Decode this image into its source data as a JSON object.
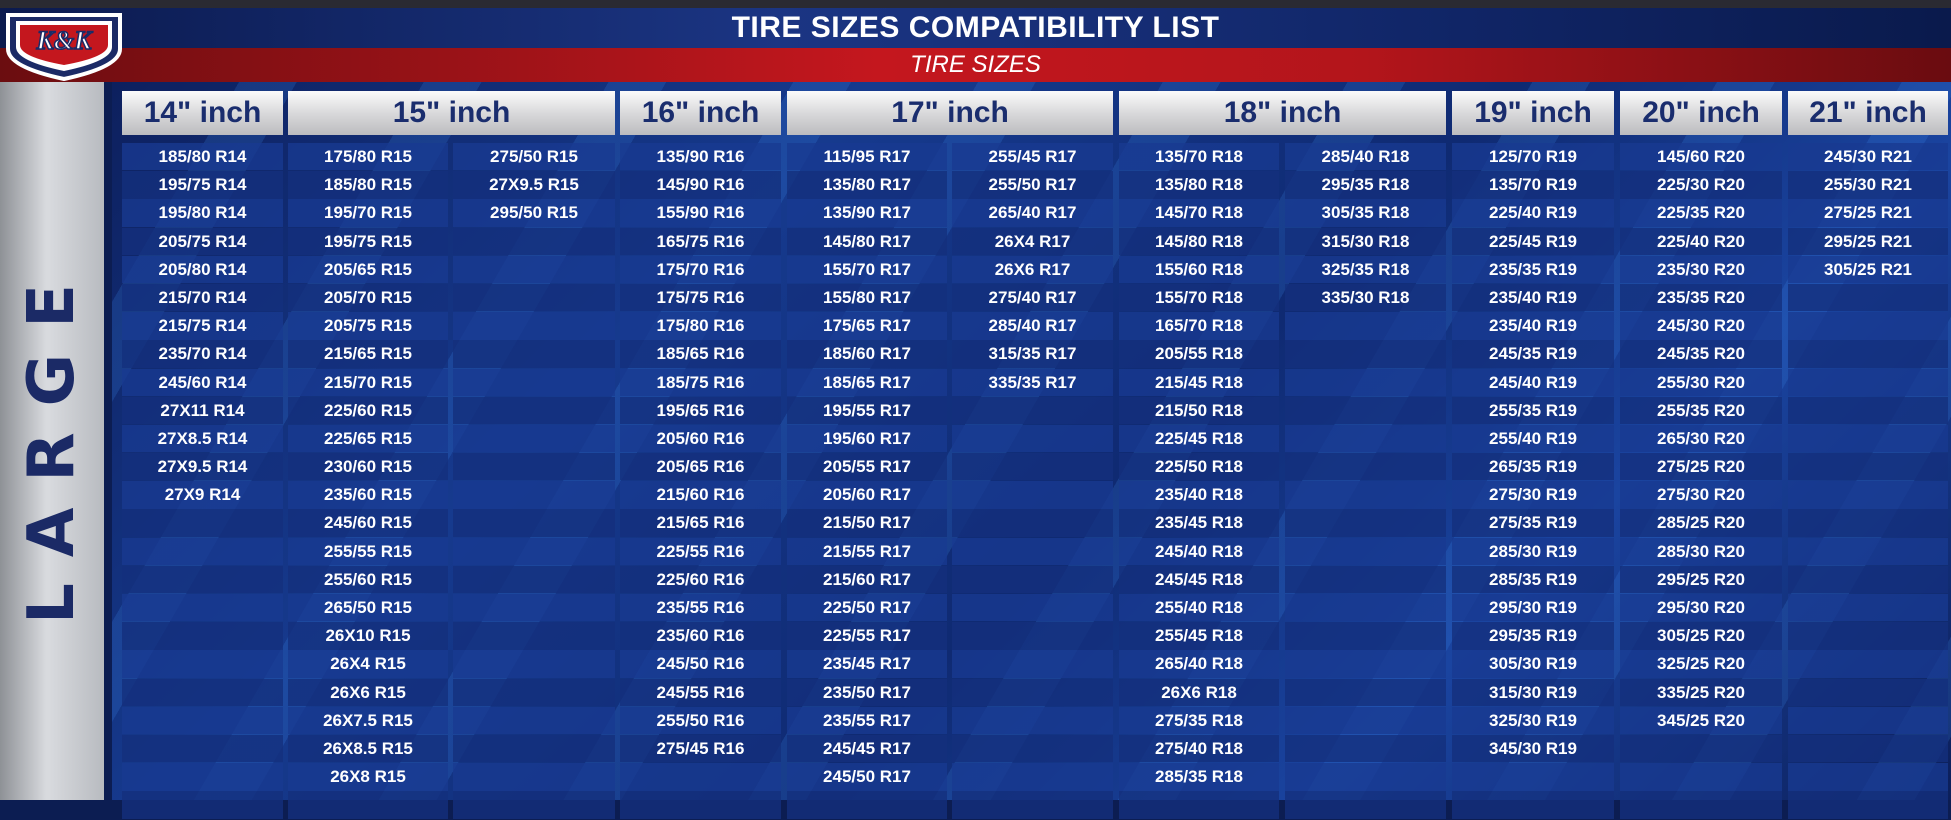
{
  "logo": {
    "text": "K&K"
  },
  "title": "TIRE SIZES COMPATIBILITY LIST",
  "subtitle": "TIRE SIZES",
  "side_label": "LARGE",
  "headers": [
    "14\" inch",
    "15\" inch",
    "16\" inch",
    "17\" inch",
    "18\" inch",
    "19\" inch",
    "20\" inch",
    "21\" inch"
  ],
  "columns": [
    [
      "185/80 R14",
      "195/75 R14",
      "195/80 R14",
      "205/75 R14",
      "205/80 R14",
      "215/70 R14",
      "215/75 R14",
      "235/70 R14",
      "245/60 R14",
      "27X11 R14",
      "27X8.5 R14",
      "27X9.5 R14",
      "27X9 R14",
      "",
      "",
      "",
      "",
      "",
      "",
      "",
      "",
      "",
      "",
      ""
    ],
    [
      "175/80 R15",
      "185/80 R15",
      "195/70 R15",
      "195/75 R15",
      "205/65 R15",
      "205/70 R15",
      "205/75 R15",
      "215/65 R15",
      "215/70 R15",
      "225/60 R15",
      "225/65 R15",
      "230/60 R15",
      "235/60 R15",
      "245/60 R15",
      "255/55 R15",
      "255/60 R15",
      "265/50 R15",
      "26X10 R15",
      "26X4 R15",
      "26X6 R15",
      "26X7.5 R15",
      "26X8.5 R15",
      "26X8 R15",
      ""
    ],
    [
      "275/50 R15",
      "27X9.5 R15",
      "295/50 R15",
      "",
      "",
      "",
      "",
      "",
      "",
      "",
      "",
      "",
      "",
      "",
      "",
      "",
      "",
      "",
      "",
      "",
      "",
      "",
      "",
      ""
    ],
    [
      "135/90 R16",
      "145/90 R16",
      "155/90 R16",
      "165/75 R16",
      "175/70 R16",
      "175/75 R16",
      "175/80 R16",
      "185/65 R16",
      "185/75 R16",
      "195/65 R16",
      "205/60 R16",
      "205/65 R16",
      "215/60 R16",
      "215/65 R16",
      "225/55 R16",
      "225/60 R16",
      "235/55 R16",
      "235/60 R16",
      "245/50 R16",
      "245/55 R16",
      "255/50 R16",
      "275/45 R16",
      "",
      ""
    ],
    [
      "115/95 R17",
      "135/80 R17",
      "135/90 R17",
      "145/80 R17",
      "155/70 R17",
      "155/80 R17",
      "175/65 R17",
      "185/60 R17",
      "185/65 R17",
      "195/55 R17",
      "195/60 R17",
      "205/55 R17",
      "205/60 R17",
      "215/50 R17",
      "215/55 R17",
      "215/60 R17",
      "225/50 R17",
      "225/55 R17",
      "235/45 R17",
      "235/50 R17",
      "235/55 R17",
      "245/45 R17",
      "245/50 R17",
      ""
    ],
    [
      "255/45 R17",
      "255/50 R17",
      "265/40 R17",
      "26X4 R17",
      "26X6 R17",
      "275/40 R17",
      "285/40 R17",
      "315/35 R17",
      "335/35 R17",
      "",
      "",
      "",
      "",
      "",
      "",
      "",
      "",
      "",
      "",
      "",
      "",
      "",
      "",
      ""
    ],
    [
      "135/70 R18",
      "135/80 R18",
      "145/70 R18",
      "145/80 R18",
      "155/60 R18",
      "155/70 R18",
      "165/70 R18",
      "205/55 R18",
      "215/45 R18",
      "215/50 R18",
      "225/45 R18",
      "225/50 R18",
      "235/40 R18",
      "235/45 R18",
      "245/40 R18",
      "245/45 R18",
      "255/40 R18",
      "255/45 R18",
      "265/40 R18",
      "26X6 R18",
      "275/35 R18",
      "275/40 R18",
      "285/35 R18",
      ""
    ],
    [
      "285/40 R18",
      "295/35 R18",
      "305/35 R18",
      "315/30 R18",
      "325/35 R18",
      "335/30 R18",
      "",
      "",
      "",
      "",
      "",
      "",
      "",
      "",
      "",
      "",
      "",
      "",
      "",
      "",
      "",
      "",
      "",
      ""
    ],
    [
      "125/70 R19",
      "135/70 R19",
      "225/40 R19",
      "225/45 R19",
      "235/35 R19",
      "235/40 R19",
      "235/40 R19",
      "245/35 R19",
      "245/40 R19",
      "255/35 R19",
      "255/40 R19",
      "265/35 R19",
      "275/30 R19",
      "275/35 R19",
      "285/30 R19",
      "285/35 R19",
      "295/30 R19",
      "295/35 R19",
      "305/30 R19",
      "315/30 R19",
      "325/30 R19",
      "345/30 R19",
      "",
      ""
    ],
    [
      "145/60 R20",
      "225/30 R20",
      "225/35 R20",
      "225/40 R20",
      "235/30 R20",
      "235/35 R20",
      "245/30 R20",
      "245/35 R20",
      "255/30 R20",
      "255/35 R20",
      "265/30 R20",
      "275/25 R20",
      "275/30 R20",
      "285/25 R20",
      "285/30 R20",
      "295/25 R20",
      "295/30 R20",
      "305/25 R20",
      "325/25 R20",
      "335/25 R20",
      "345/25 R20",
      "",
      "",
      ""
    ],
    [
      "245/30 R21",
      "255/30 R21",
      "275/25 R21",
      "295/25 R21",
      "305/25 R21",
      "",
      "",
      "",
      "",
      "",
      "",
      "",
      "",
      "",
      "",
      "",
      "",
      "",
      "",
      "",
      "",
      "",
      "",
      ""
    ]
  ]
}
